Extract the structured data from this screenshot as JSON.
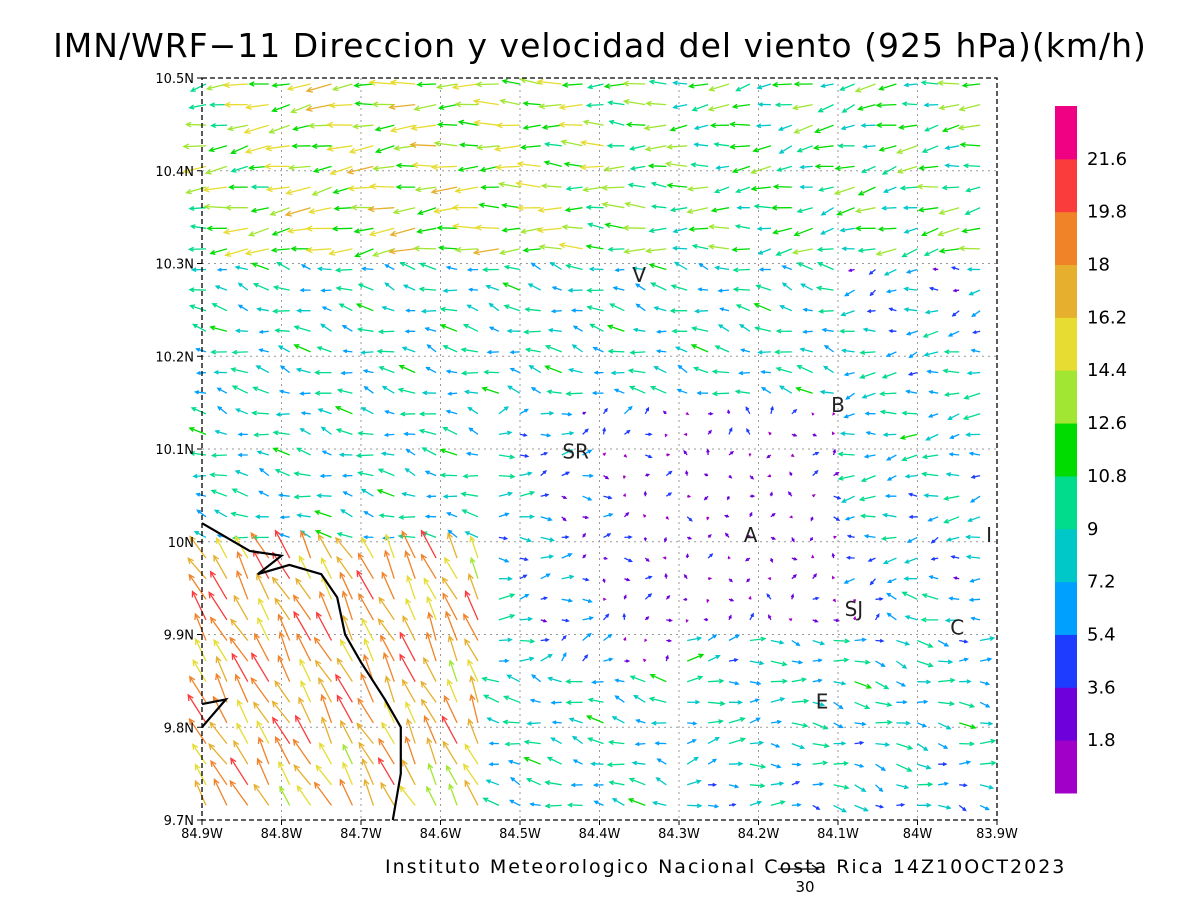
{
  "title": "IMN/WRF−11 Direccion y velocidad del viento (925 hPa)(km/h)",
  "credit": "Instituto Meteorologico Nacional Costa Rica 14Z10OCT2023",
  "reference_vector": {
    "value": "30"
  },
  "axes": {
    "lat_ticks": [
      "9.7N",
      "9.8N",
      "9.9N",
      "10N",
      "10.1N",
      "10.2N",
      "10.3N",
      "10.4N",
      "10.5N"
    ],
    "lon_ticks": [
      "84.9W",
      "84.8W",
      "84.7W",
      "84.6W",
      "84.5W",
      "84.4W",
      "84.3W",
      "84.2W",
      "84.1W",
      "84W",
      "83.9W"
    ],
    "lat_range": [
      9.7,
      10.5
    ],
    "lon_range": [
      -84.9,
      -83.9
    ]
  },
  "colorbar": {
    "labels": [
      "1.8",
      "3.6",
      "5.4",
      "7.2",
      "9",
      "10.8",
      "12.6",
      "14.4",
      "16.2",
      "18",
      "19.8",
      "21.6"
    ],
    "colors": [
      "#a000c8",
      "#6e00dc",
      "#1e3cff",
      "#00a0ff",
      "#00c8c8",
      "#00dc8c",
      "#00dc00",
      "#a0e632",
      "#e6dc32",
      "#e6af2d",
      "#f08228",
      "#fa3c3c",
      "#f00082"
    ]
  },
  "places": [
    {
      "name": "V",
      "lon": -84.35,
      "lat": 10.28
    },
    {
      "name": "B",
      "lon": -84.1,
      "lat": 10.14
    },
    {
      "name": "SR",
      "lon": -84.43,
      "lat": 10.09
    },
    {
      "name": "A",
      "lon": -84.21,
      "lat": 10.0
    },
    {
      "name": "I",
      "lon": -83.91,
      "lat": 10.0
    },
    {
      "name": "SJ",
      "lon": -84.08,
      "lat": 9.92
    },
    {
      "name": "C",
      "lon": -83.95,
      "lat": 9.9
    },
    {
      "name": "E",
      "lon": -84.12,
      "lat": 9.82
    }
  ],
  "coastline": [
    [
      -84.9,
      10.02
    ],
    [
      -84.84,
      9.99
    ],
    [
      -84.8,
      9.985
    ],
    [
      -84.83,
      9.965
    ],
    [
      -84.79,
      9.975
    ],
    [
      -84.75,
      9.965
    ],
    [
      -84.73,
      9.94
    ],
    [
      -84.72,
      9.9
    ],
    [
      -84.7,
      9.87
    ],
    [
      -84.67,
      9.83
    ],
    [
      -84.65,
      9.8
    ],
    [
      -84.65,
      9.75
    ],
    [
      -84.66,
      9.7
    ]
  ],
  "coastline2": [
    [
      -84.9,
      9.825
    ],
    [
      -84.87,
      9.83
    ],
    [
      -84.9,
      9.8
    ]
  ]
}
